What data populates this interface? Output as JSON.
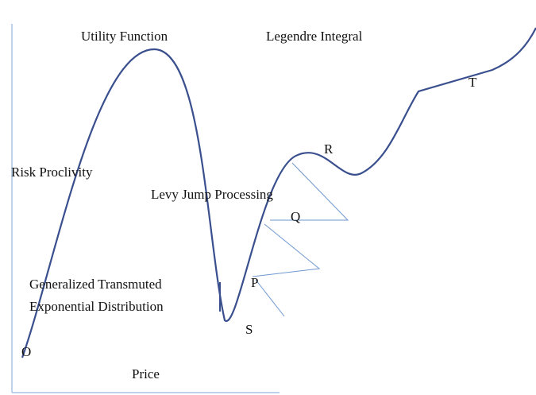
{
  "labels": {
    "utility": "Utility Function",
    "legendre": "Legendre Integral",
    "risk": "Risk Proclivity",
    "levy": "Levy Jump Processing",
    "gen1": "Generalized Transmuted",
    "gen2": "Exponential Distribution",
    "price": "Price",
    "o": "O",
    "p": "P",
    "q": "Q",
    "r": "R",
    "s": "S",
    "t": "T"
  }
}
